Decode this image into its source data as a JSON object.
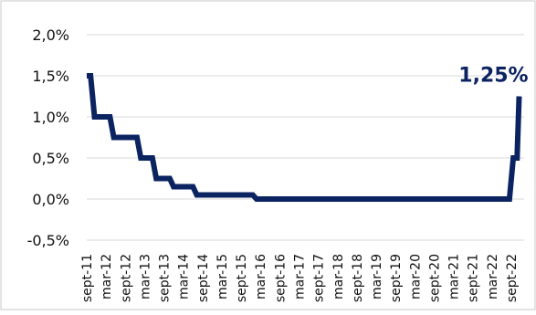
{
  "chart_data": {
    "type": "line",
    "title": "",
    "xlabel": "",
    "ylabel": "",
    "ylim": [
      -0.5,
      2.0
    ],
    "y_ticks": [
      "-0,5%",
      "0,0%",
      "0,5%",
      "1,0%",
      "1,5%",
      "2,0%"
    ],
    "y_tick_values": [
      -0.5,
      0.0,
      0.5,
      1.0,
      1.5,
      2.0
    ],
    "x_ticks": [
      "sept-11",
      "mar-12",
      "sept-12",
      "mar-13",
      "sept-13",
      "mar-14",
      "sept-14",
      "mar-15",
      "sept-15",
      "mar-16",
      "sept-16",
      "mar-17",
      "sept-17",
      "mar-18",
      "sept-18",
      "mar-19",
      "sept-19",
      "mar-20",
      "sept-20",
      "mar-21",
      "sept-21",
      "mar-22",
      "sept-22"
    ],
    "end_label": "1,25%",
    "grid": true,
    "colors": {
      "line": "#0b2361",
      "grid": "#d9d9d9",
      "border": "#c8c8c8"
    },
    "series": [
      {
        "x": [
          0,
          0.2,
          0.4,
          1.2,
          1.4,
          2.6,
          2.8,
          3.4,
          3.6,
          4.3,
          4.5,
          5.5,
          5.7,
          6.2,
          6.4,
          8.6,
          8.8,
          21.9,
          22.1,
          22.3,
          22.4
        ],
        "values": [
          1.5,
          1.5,
          1.0,
          1.0,
          0.75,
          0.75,
          0.5,
          0.5,
          0.25,
          0.25,
          0.15,
          0.15,
          0.05,
          0.05,
          0.05,
          0.05,
          0.0,
          0.0,
          0.5,
          0.5,
          1.25
        ]
      }
    ]
  }
}
